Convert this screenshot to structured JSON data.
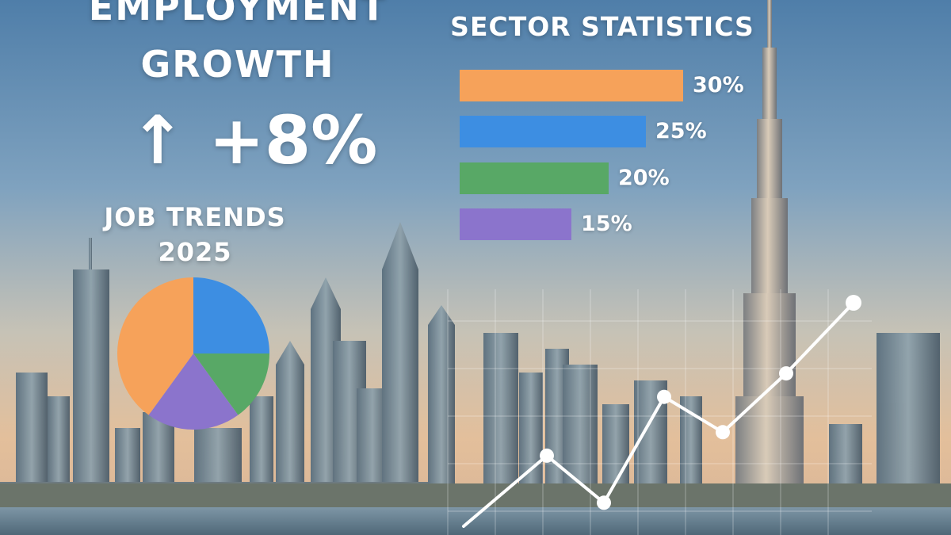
{
  "headline": {
    "title_line1": "EMPLOYMENT",
    "title_line2": "GROWTH",
    "growth": "↑ +8%"
  },
  "job_trends": {
    "line1": "JOB TRENDS",
    "line2": "2025"
  },
  "colors": {
    "orange": "#f6a25a",
    "blue": "#3d8ee2",
    "green": "#58a866",
    "purple": "#8b74cc",
    "line": "#ffffff"
  },
  "chart_data": [
    {
      "type": "bar",
      "title": "SECTOR STATISTICS",
      "orientation": "horizontal",
      "values": [
        30,
        25,
        20,
        15
      ],
      "labels": [
        "30%",
        "25%",
        "20%",
        "15%"
      ],
      "colors": [
        "#f6a25a",
        "#3d8ee2",
        "#58a866",
        "#8b74cc"
      ]
    },
    {
      "type": "pie",
      "values": [
        25,
        15,
        20,
        40
      ],
      "colors": [
        "#3d8ee2",
        "#58a866",
        "#8b74cc",
        "#f6a25a"
      ]
    },
    {
      "type": "line",
      "x": [
        1,
        2,
        3,
        4,
        5,
        6,
        7
      ],
      "values": [
        0,
        30,
        10,
        55,
        40,
        65,
        95
      ],
      "grid": true
    }
  ]
}
